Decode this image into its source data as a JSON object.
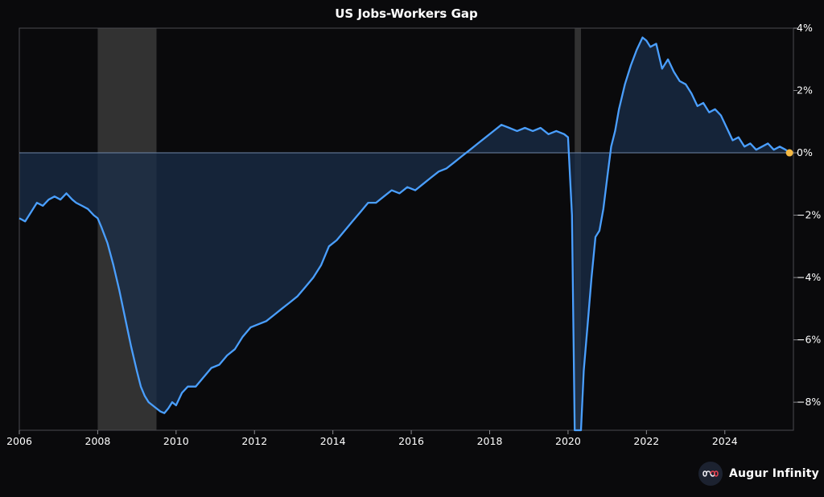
{
  "brand": {
    "name": "Augur Infinity",
    "icon": "infinity-logo-icon"
  },
  "colors": {
    "background": "#0a0a0c",
    "line": "#4a9fff",
    "area": "#1a2d48",
    "recession": "#3a3a3a",
    "endpoint": "#f5b942"
  },
  "chart_data": {
    "type": "area",
    "title": "US Jobs-Workers Gap",
    "xlabel": "",
    "ylabel": "",
    "y_axis_position": "right",
    "y_unit": "%",
    "x_ticks": [
      "2006",
      "2008",
      "2010",
      "2012",
      "2014",
      "2016",
      "2018",
      "2020",
      "2022",
      "2024"
    ],
    "y_ticks": [
      4,
      2,
      0,
      -2,
      -4,
      -6,
      -8
    ],
    "y_tick_labels": [
      "4%",
      "2%",
      "0%",
      "−2%",
      "−4%",
      "−6%",
      "−8%"
    ],
    "xlim": [
      2006.0,
      2025.75
    ],
    "ylim": [
      -8.9,
      4.0
    ],
    "recessions": [
      [
        2008.0,
        2009.5
      ],
      [
        2020.17,
        2020.33
      ]
    ],
    "series": [
      {
        "x": [
          2006.0,
          2006.15,
          2006.3,
          2006.45,
          2006.6,
          2006.75,
          2006.9,
          2007.05,
          2007.2,
          2007.35,
          2007.45,
          2007.6,
          2007.75,
          2007.9,
          2008.0,
          2008.1,
          2008.25,
          2008.4,
          2008.55,
          2008.7,
          2008.85,
          2009.0,
          2009.1,
          2009.2,
          2009.3,
          2009.4,
          2009.5,
          2009.6,
          2009.7,
          2009.8,
          2009.9,
          2010.0,
          2010.15,
          2010.3,
          2010.5,
          2010.7,
          2010.9,
          2011.1,
          2011.3,
          2011.5,
          2011.7,
          2011.9,
          2012.1,
          2012.3,
          2012.5,
          2012.7,
          2012.9,
          2013.1,
          2013.3,
          2013.5,
          2013.7,
          2013.9,
          2014.1,
          2014.3,
          2014.5,
          2014.7,
          2014.9,
          2015.1,
          2015.3,
          2015.5,
          2015.7,
          2015.9,
          2016.1,
          2016.3,
          2016.5,
          2016.7,
          2016.9,
          2017.1,
          2017.3,
          2017.5,
          2017.7,
          2017.9,
          2018.1,
          2018.3,
          2018.5,
          2018.7,
          2018.9,
          2019.1,
          2019.3,
          2019.5,
          2019.7,
          2019.9,
          2020.0,
          2020.1,
          2020.17,
          2020.22,
          2020.28,
          2020.33,
          2020.4,
          2020.5,
          2020.6,
          2020.7,
          2020.8,
          2020.9,
          2021.0,
          2021.1,
          2021.2,
          2021.3,
          2021.45,
          2021.6,
          2021.75,
          2021.9,
          2022.0,
          2022.1,
          2022.25,
          2022.4,
          2022.55,
          2022.7,
          2022.85,
          2023.0,
          2023.15,
          2023.3,
          2023.45,
          2023.6,
          2023.75,
          2023.9,
          2024.05,
          2024.2,
          2024.35,
          2024.5,
          2024.65,
          2024.8,
          2024.95,
          2025.1,
          2025.25,
          2025.4,
          2025.55,
          2025.65
        ],
        "values": [
          -2.1,
          -2.2,
          -1.9,
          -1.6,
          -1.7,
          -1.5,
          -1.4,
          -1.5,
          -1.3,
          -1.5,
          -1.6,
          -1.7,
          -1.8,
          -2.0,
          -2.1,
          -2.4,
          -2.9,
          -3.6,
          -4.4,
          -5.3,
          -6.2,
          -7.0,
          -7.5,
          -7.8,
          -8.0,
          -8.1,
          -8.2,
          -8.3,
          -8.35,
          -8.2,
          -8.0,
          -8.1,
          -7.7,
          -7.5,
          -7.5,
          -7.2,
          -6.9,
          -6.8,
          -6.5,
          -6.3,
          -5.9,
          -5.6,
          -5.5,
          -5.4,
          -5.2,
          -5.0,
          -4.8,
          -4.6,
          -4.3,
          -4.0,
          -3.6,
          -3.0,
          -2.8,
          -2.5,
          -2.2,
          -1.9,
          -1.6,
          -1.6,
          -1.4,
          -1.2,
          -1.3,
          -1.1,
          -1.2,
          -1.0,
          -0.8,
          -0.6,
          -0.5,
          -0.3,
          -0.1,
          0.1,
          0.3,
          0.5,
          0.7,
          0.9,
          0.8,
          0.7,
          0.8,
          0.7,
          0.8,
          0.6,
          0.7,
          0.6,
          0.5,
          -2.0,
          -8.9,
          -8.9,
          -8.9,
          -8.9,
          -7.0,
          -5.5,
          -4.0,
          -2.7,
          -2.5,
          -1.8,
          -0.8,
          0.2,
          0.7,
          1.4,
          2.2,
          2.8,
          3.3,
          3.7,
          3.6,
          3.4,
          3.5,
          2.7,
          3.0,
          2.6,
          2.3,
          2.2,
          1.9,
          1.5,
          1.6,
          1.3,
          1.4,
          1.2,
          0.8,
          0.4,
          0.5,
          0.2,
          0.3,
          0.1,
          0.2,
          0.3,
          0.1,
          0.2,
          0.1,
          0.0
        ]
      }
    ]
  }
}
